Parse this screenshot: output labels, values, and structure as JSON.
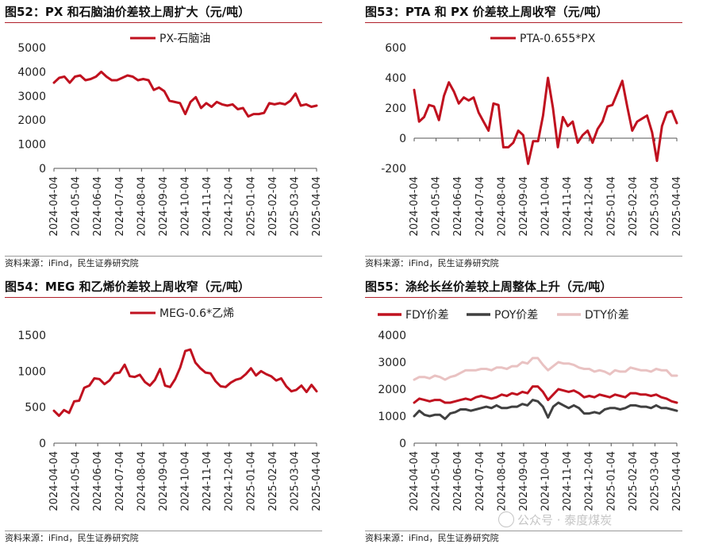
{
  "colors": {
    "red": "#c0111f",
    "dark": "#404040",
    "pink": "#e9c2c2",
    "title_rule": "#b0202a"
  },
  "watermark": "公众号 · 泰度煤炭",
  "charts": [
    {
      "title": "图52：PX 和石脑油价差较上周扩大（元/吨）",
      "source": "资料来源：iFind，民生证券研究院",
      "chart_data": {
        "type": "line",
        "ylim": [
          0,
          5000
        ],
        "yticks": [
          0,
          1000,
          2000,
          3000,
          4000,
          5000
        ],
        "xticks": [
          "2024-04-04",
          "2024-05-04",
          "2024-06-04",
          "2024-07-04",
          "2024-08-04",
          "2024-09-04",
          "2024-10-04",
          "2024-11-04",
          "2024-12-04",
          "2025-01-04",
          "2025-02-04",
          "2025-03-04",
          "2025-04-04"
        ],
        "legend": "top-center",
        "grid": false,
        "series": [
          {
            "name": "PX-石脑油",
            "color": "#c0111f",
            "values": [
              3550,
              3750,
              3800,
              3550,
              3800,
              3850,
              3650,
              3700,
              3800,
              4000,
              3800,
              3650,
              3650,
              3750,
              3850,
              3800,
              3650,
              3700,
              3650,
              3250,
              3350,
              3200,
              2800,
              2750,
              2700,
              2250,
              2750,
              2950,
              2500,
              2700,
              2550,
              2750,
              2650,
              2600,
              2650,
              2450,
              2500,
              2150,
              2250,
              2250,
              2300,
              2700,
              2650,
              2700,
              2650,
              2800,
              3100,
              2600,
              2650,
              2550,
              2600
            ]
          }
        ]
      }
    },
    {
      "title": "图53：PTA 和 PX 价差较上周收窄（元/吨）",
      "source": "资料来源：iFind，民生证券研究院",
      "chart_data": {
        "type": "line",
        "ylim": [
          -200,
          600
        ],
        "yticks": [
          -200,
          0,
          200,
          400,
          600
        ],
        "xticks": [
          "2024-04-04",
          "2024-05-04",
          "2024-06-04",
          "2024-07-04",
          "2024-08-04",
          "2024-09-04",
          "2024-10-04",
          "2024-11-04",
          "2024-12-04",
          "2025-01-04",
          "2025-02-04",
          "2025-03-04",
          "2025-04-04"
        ],
        "legend": "top-center",
        "grid": false,
        "series": [
          {
            "name": "PTA-0.655*PX",
            "color": "#c0111f",
            "values": [
              320,
              110,
              140,
              220,
              210,
              120,
              280,
              370,
              310,
              230,
              270,
              250,
              270,
              170,
              110,
              50,
              230,
              220,
              -60,
              -60,
              -30,
              50,
              20,
              -170,
              -20,
              -20,
              150,
              400,
              200,
              -60,
              140,
              80,
              110,
              -30,
              20,
              50,
              -30,
              60,
              110,
              210,
              220,
              300,
              380,
              210,
              50,
              110,
              130,
              150,
              40,
              -150,
              80,
              170,
              180,
              100
            ]
          }
        ]
      }
    },
    {
      "title": "图54：MEG 和乙烯价差较上周收窄（元/吨）",
      "source": "资料来源：iFind，民生证券研究院",
      "chart_data": {
        "type": "line",
        "ylim": [
          0,
          1500
        ],
        "yticks": [
          0,
          500,
          1000,
          1500
        ],
        "xticks": [
          "2024-04-04",
          "2024-05-04",
          "2024-06-04",
          "2024-07-04",
          "2024-08-04",
          "2024-09-04",
          "2024-10-04",
          "2024-11-04",
          "2024-12-04",
          "2025-01-04",
          "2025-02-04",
          "2025-03-04",
          "2025-04-04"
        ],
        "legend": "top-center",
        "grid": false,
        "series": [
          {
            "name": "MEG-0.6*乙烯",
            "color": "#c0111f",
            "values": [
              450,
              380,
              460,
              420,
              580,
              590,
              770,
              800,
              900,
              890,
              820,
              870,
              970,
              980,
              1090,
              930,
              920,
              950,
              850,
              800,
              880,
              1030,
              800,
              780,
              890,
              1050,
              1280,
              1300,
              1120,
              1040,
              980,
              970,
              860,
              790,
              780,
              840,
              880,
              900,
              960,
              1040,
              940,
              1000,
              960,
              930,
              870,
              900,
              790,
              720,
              740,
              800,
              710,
              810,
              720
            ]
          }
        ]
      }
    },
    {
      "title": "图55：涤纶长丝价差较上周整体上升（元/吨）",
      "source": "资料来源：iFind，民生证券研究院",
      "chart_data": {
        "type": "line",
        "ylim": [
          0,
          4000
        ],
        "yticks": [
          0,
          1000,
          2000,
          3000,
          4000
        ],
        "xticks": [
          "2024-04-04",
          "2024-05-04",
          "2024-06-04",
          "2024-07-04",
          "2024-08-04",
          "2024-09-04",
          "2024-10-04",
          "2024-11-04",
          "2024-12-04",
          "2025-01-04",
          "2025-02-04",
          "2025-03-04",
          "2025-04-04"
        ],
        "legend": "top-center",
        "grid": false,
        "series": [
          {
            "name": "FDY价差",
            "color": "#c0111f",
            "values": [
              1500,
              1650,
              1600,
              1550,
              1600,
              1600,
              1500,
              1500,
              1550,
              1600,
              1650,
              1600,
              1700,
              1750,
              1700,
              1650,
              1700,
              1800,
              1750,
              1850,
              1800,
              1900,
              1850,
              2100,
              2100,
              1900,
              1600,
              1800,
              2000,
              1950,
              1900,
              1950,
              1850,
              1700,
              1750,
              1700,
              1800,
              1750,
              1700,
              1800,
              1750,
              1700,
              1850,
              1850,
              1800,
              1800,
              1750,
              1800,
              1700,
              1650,
              1550,
              1500
            ]
          },
          {
            "name": "POY价差",
            "color": "#404040",
            "values": [
              1000,
              1200,
              1050,
              1000,
              1050,
              1050,
              900,
              1100,
              1150,
              1250,
              1250,
              1200,
              1250,
              1300,
              1350,
              1300,
              1400,
              1300,
              1300,
              1350,
              1350,
              1450,
              1400,
              1600,
              1550,
              1350,
              950,
              1350,
              1500,
              1400,
              1300,
              1400,
              1300,
              1100,
              1100,
              1150,
              1100,
              1250,
              1300,
              1300,
              1250,
              1300,
              1400,
              1400,
              1350,
              1350,
              1300,
              1400,
              1300,
              1300,
              1250,
              1200
            ]
          },
          {
            "name": "DTY价差",
            "color": "#e9c2c2",
            "values": [
              2350,
              2450,
              2450,
              2400,
              2500,
              2450,
              2350,
              2450,
              2500,
              2600,
              2700,
              2700,
              2700,
              2750,
              2750,
              2700,
              2800,
              2800,
              2750,
              2850,
              2850,
              3000,
              2950,
              3150,
              3150,
              2900,
              2700,
              2850,
              3000,
              2950,
              2950,
              2900,
              2800,
              2750,
              2750,
              2650,
              2700,
              2650,
              2550,
              2700,
              2650,
              2650,
              2800,
              2750,
              2700,
              2700,
              2650,
              2750,
              2700,
              2700,
              2500,
              2500
            ]
          }
        ]
      }
    }
  ]
}
